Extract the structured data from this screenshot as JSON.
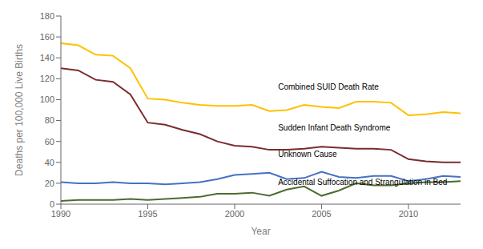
{
  "chart_data": {
    "type": "line",
    "xlabel": "Year",
    "ylabel": "Deaths per 100,000 Live Births",
    "x": [
      1990,
      1991,
      1992,
      1993,
      1994,
      1995,
      1996,
      1997,
      1998,
      1999,
      2000,
      2001,
      2002,
      2003,
      2004,
      2005,
      2006,
      2007,
      2008,
      2009,
      2010,
      2011,
      2012,
      2013
    ],
    "series": [
      {
        "color": "#FFC000",
        "values": [
          154,
          152,
          143,
          142,
          130,
          101,
          100,
          97,
          95,
          94,
          94,
          95,
          89,
          90,
          95,
          93,
          92,
          98,
          98,
          97,
          85,
          86,
          88,
          87
        ]
      },
      {
        "color": "#7B2C2C",
        "values": [
          130,
          128,
          119,
          117,
          105,
          78,
          76,
          71,
          67,
          60,
          56,
          55,
          52,
          52,
          53,
          55,
          54,
          53,
          53,
          52,
          43,
          41,
          40,
          40
        ]
      },
      {
        "color": "#4472C4",
        "values": [
          21,
          20,
          20,
          21,
          20,
          20,
          19,
          20,
          21,
          24,
          28,
          29,
          30,
          24,
          25,
          31,
          26,
          25,
          27,
          27,
          22,
          24,
          27,
          26
        ]
      },
      {
        "color": "#4C6B30",
        "values": [
          3,
          4,
          4,
          4,
          5,
          4,
          5,
          6,
          7,
          10,
          10,
          11,
          8,
          14,
          17,
          8,
          13,
          20,
          18,
          18,
          20,
          21,
          21,
          22
        ]
      }
    ],
    "xlim": [
      1990,
      2013
    ],
    "xticks": [
      1990,
      1995,
      2000,
      2005,
      2010
    ],
    "ylim": [
      0,
      180
    ],
    "yticks": [
      0,
      20,
      40,
      60,
      80,
      100,
      120,
      140,
      160,
      180
    ],
    "grid": false,
    "annotations": [
      {
        "text": "Combined SUID Death Rate",
        "x": 2002.5,
        "y": 107
      },
      {
        "text": "Sudden Infant Death Syndrome",
        "x": 2002.5,
        "y": 68
      },
      {
        "text": "Unknown Cause",
        "x": 2002.5,
        "y": 43
      },
      {
        "text": "Accidental Suffocation and Strangulation in Bed",
        "x": 2002.5,
        "y": 16
      }
    ]
  }
}
